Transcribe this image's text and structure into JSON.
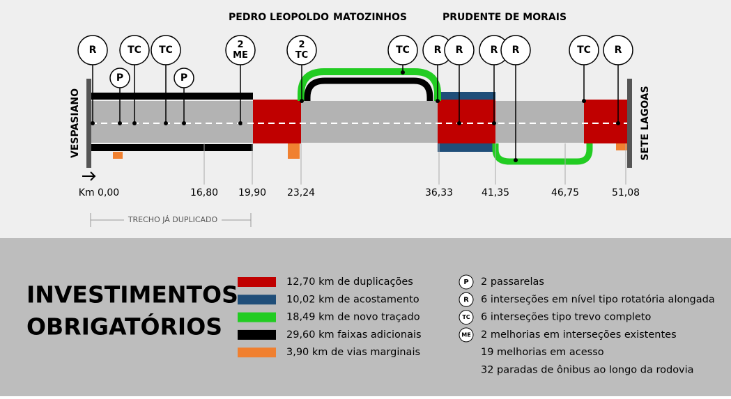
{
  "towns": [
    "PEDRO LEOPOLDO",
    "MATOZINHOS",
    "PRUDENTE DE MORAIS"
  ],
  "endpoints": {
    "start": "VESPASIANO",
    "end": "SETE LAGOAS"
  },
  "markers": [
    {
      "lines": [
        "R"
      ]
    },
    {
      "lines": [
        "P"
      ]
    },
    {
      "lines": [
        "TC"
      ]
    },
    {
      "lines": [
        "TC"
      ]
    },
    {
      "lines": [
        "P"
      ]
    },
    {
      "lines": [
        "2",
        "ME"
      ]
    },
    {
      "lines": [
        "2",
        "TC"
      ]
    },
    {
      "lines": [
        "TC"
      ]
    },
    {
      "lines": [
        "R"
      ]
    },
    {
      "lines": [
        "R"
      ]
    },
    {
      "lines": [
        "R"
      ]
    },
    {
      "lines": [
        "R"
      ]
    },
    {
      "lines": [
        "TC"
      ]
    },
    {
      "lines": [
        "R"
      ]
    }
  ],
  "km_labels": [
    "Km 0,00",
    "16,80",
    "19,90",
    "23,24",
    "36,33",
    "41,35",
    "46,75",
    "51,08"
  ],
  "duplicated_note": "TRECHO JÁ DUPLICADO",
  "legend": {
    "title": [
      "INVESTIMENTOS",
      "OBRIGATÓRIOS"
    ],
    "colors": [
      {
        "color": "#c00000",
        "label": "12,70 km de duplicações"
      },
      {
        "color": "#1f4e79",
        "label": "10,02 km de acostamento"
      },
      {
        "color": "#22cc22",
        "label": "18,49 km de novo traçado"
      },
      {
        "color": "#000000",
        "label": "29,60 km faixas adicionais"
      },
      {
        "color": "#f08030",
        "label": "3,90 km de vias marginais"
      }
    ],
    "items": [
      {
        "symbol": "P",
        "label": "2 passarelas"
      },
      {
        "symbol": "R",
        "label": "6 interseções em nível tipo rotatória alongada"
      },
      {
        "symbol": "TC",
        "label": "6 interseções tipo trevo completo"
      },
      {
        "symbol": "ME",
        "label": "2 melhorias em interseções existentes"
      },
      {
        "symbol": null,
        "label": "19 melhorias em acesso"
      },
      {
        "symbol": null,
        "label": "32 paradas de ônibus ao longo da rodovia"
      }
    ]
  }
}
